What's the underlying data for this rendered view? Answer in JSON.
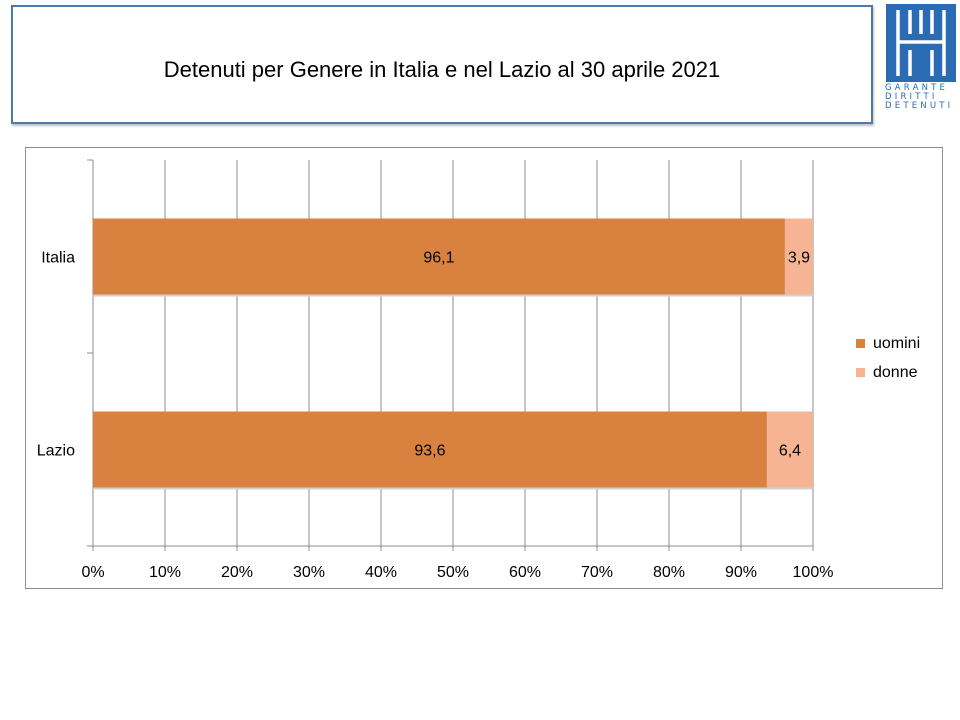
{
  "slide": {
    "title": "Detenuti per Genere in Italia e nel Lazio al 30 aprile 2021"
  },
  "logo": {
    "line1": "GARANTE",
    "line2": "DIRITTI",
    "line3": "DETENUTI",
    "color": "#2b6bb3"
  },
  "chart_data": {
    "type": "bar",
    "orientation": "horizontal",
    "stacked": true,
    "title": "",
    "categories": [
      "Italia",
      "Lazio"
    ],
    "series": [
      {
        "name": "uomini",
        "values": [
          96.1,
          93.6
        ],
        "labels": [
          "96,1",
          "93,6"
        ],
        "color": "#d9813f"
      },
      {
        "name": "donne",
        "values": [
          3.9,
          6.4
        ],
        "labels": [
          "3,9",
          "6,4"
        ],
        "color": "#f7b494"
      }
    ],
    "xlim": [
      0,
      100
    ],
    "x_ticks": [
      0,
      10,
      20,
      30,
      40,
      50,
      60,
      70,
      80,
      90,
      100
    ],
    "x_tick_labels": [
      "0%",
      "10%",
      "20%",
      "30%",
      "40%",
      "50%",
      "60%",
      "70%",
      "80%",
      "90%",
      "100%"
    ],
    "grid": true,
    "legend_position": "right",
    "xlabel": "",
    "ylabel": ""
  }
}
